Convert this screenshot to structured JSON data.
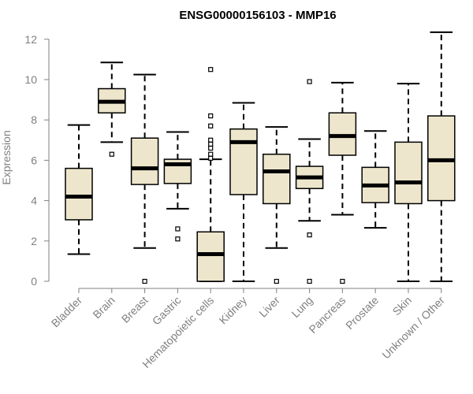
{
  "chart_data": {
    "type": "box",
    "title": "ENSG00000156103 - MMP16",
    "xlabel": "",
    "ylabel": "Expression",
    "ylim": [
      0,
      12.5
    ],
    "yticks": [
      0,
      2,
      4,
      6,
      8,
      10,
      12
    ],
    "grid": false,
    "legend": "none",
    "categories": [
      "Bladder",
      "Brain",
      "Breast",
      "Gastric",
      "Hematopoietic cells",
      "Kidney",
      "Liver",
      "Lung",
      "Pancreas",
      "Prostate",
      "Skin",
      "Unknown / Other"
    ],
    "boxes": [
      {
        "min": 1.35,
        "q1": 3.05,
        "median": 4.2,
        "q3": 5.6,
        "max": 7.75,
        "outliers": []
      },
      {
        "min": 6.9,
        "q1": 8.35,
        "median": 8.9,
        "q3": 9.55,
        "max": 10.85,
        "outliers": [
          6.3
        ]
      },
      {
        "min": 1.65,
        "q1": 4.8,
        "median": 5.6,
        "q3": 7.1,
        "max": 10.25,
        "outliers": [
          0.0
        ]
      },
      {
        "min": 3.6,
        "q1": 4.85,
        "median": 5.8,
        "q3": 6.05,
        "max": 7.4,
        "outliers": [
          2.6,
          2.1
        ]
      },
      {
        "min": 0.0,
        "q1": 0.0,
        "median": 1.35,
        "q3": 2.45,
        "max": 6.05,
        "outliers": [
          10.5,
          8.2,
          7.7,
          7.0,
          6.8,
          6.6,
          6.3,
          6.1
        ]
      },
      {
        "min": 0.0,
        "q1": 4.3,
        "median": 6.9,
        "q3": 7.55,
        "max": 8.85,
        "outliers": []
      },
      {
        "min": 1.65,
        "q1": 3.85,
        "median": 5.45,
        "q3": 6.3,
        "max": 7.65,
        "outliers": [
          0.0
        ]
      },
      {
        "min": 3.0,
        "q1": 4.6,
        "median": 5.15,
        "q3": 5.7,
        "max": 7.05,
        "outliers": [
          9.9,
          2.3,
          0.0
        ]
      },
      {
        "min": 3.3,
        "q1": 6.25,
        "median": 7.2,
        "q3": 8.35,
        "max": 9.85,
        "outliers": [
          0.0
        ]
      },
      {
        "min": 2.65,
        "q1": 3.9,
        "median": 4.75,
        "q3": 5.65,
        "max": 7.45,
        "outliers": []
      },
      {
        "min": 0.0,
        "q1": 3.85,
        "median": 4.9,
        "q3": 6.9,
        "max": 9.8,
        "outliers": []
      },
      {
        "min": 0.0,
        "q1": 4.0,
        "median": 6.0,
        "q3": 8.2,
        "max": 12.35,
        "outliers": []
      }
    ],
    "colors": {
      "box_fill": "#ede6cc",
      "box_stroke": "#000000",
      "median": "#000000",
      "axis": "#808080",
      "text": "#808080"
    }
  }
}
